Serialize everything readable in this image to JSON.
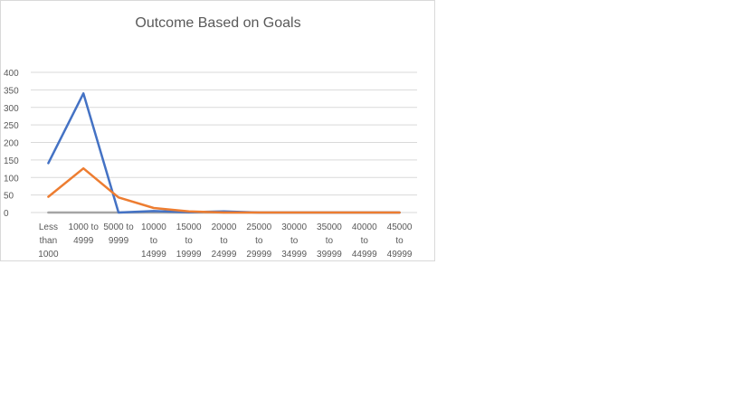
{
  "chart_data": {
    "type": "line",
    "title": "Outcome Based on Goals",
    "xlabel": "",
    "ylabel": "",
    "ylim": [
      0,
      400
    ],
    "yticks": [
      "0",
      "50",
      "100",
      "150",
      "200",
      "250",
      "300",
      "350",
      "400"
    ],
    "grid": true,
    "legend": "none",
    "categories": [
      "Less than 1000",
      "1000 to 4999",
      "5000 to 9999",
      "10000 to 14999",
      "15000 to 19999",
      "20000 to 24999",
      "25000 to 29999",
      "30000 to 34999",
      "35000 to 39999",
      "40000 to 44999",
      "45000 to 49999"
    ],
    "category_lines": [
      [
        "Less",
        "than",
        "1000"
      ],
      [
        "1000 to",
        "4999"
      ],
      [
        "5000 to",
        "9999"
      ],
      [
        "10000",
        "to",
        "14999"
      ],
      [
        "15000",
        "to",
        "19999"
      ],
      [
        "20000",
        "to",
        "24999"
      ],
      [
        "25000",
        "to",
        "29999"
      ],
      [
        "30000",
        "to",
        "34999"
      ],
      [
        "35000",
        "to",
        "39999"
      ],
      [
        "40000",
        "to",
        "44999"
      ],
      [
        "45000",
        "to",
        "49999"
      ]
    ],
    "series": [
      {
        "color": "#4472C4",
        "values": [
          141,
          340,
          0,
          4,
          1,
          3,
          0,
          0,
          0,
          0,
          0
        ]
      },
      {
        "color": "#ED7D31",
        "values": [
          45,
          126,
          43,
          13,
          3,
          0,
          0,
          0,
          0,
          0,
          0
        ]
      },
      {
        "color": "#A5A5A5",
        "values": [
          0,
          0,
          0,
          0,
          0,
          0,
          0,
          0,
          0,
          0,
          0
        ]
      }
    ]
  }
}
